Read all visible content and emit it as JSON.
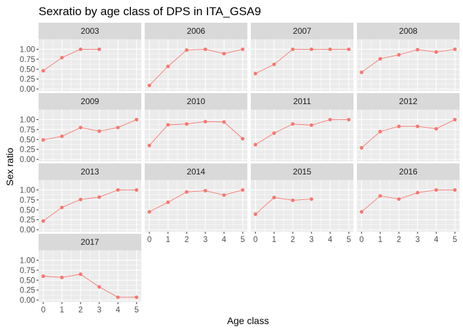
{
  "chart_data": {
    "type": "line",
    "title": "Sexratio by age class of DPS in ITA_GSA9",
    "xlabel": "Age class",
    "ylabel": "Sex ratio",
    "x_ticks": [
      0,
      1,
      2,
      3,
      4,
      5
    ],
    "y_ticks": [
      0,
      0.25,
      0.5,
      0.75,
      1
    ],
    "y_tick_labels": [
      "0.00",
      "0.25",
      "0.50",
      "0.75",
      "1.00"
    ],
    "xlim": [
      -0.25,
      5.25
    ],
    "ylim": [
      -0.05,
      1.25
    ],
    "grid": true,
    "facet_layout": "wrap",
    "facet_columns": 4,
    "series_color": "#F8766D",
    "panel_background": "#EBEBEB",
    "strip_background": "#D9D9D9",
    "grid_color": "#FFFFFF",
    "panels": [
      {
        "label": "2003",
        "x": [
          0,
          1,
          2,
          3
        ],
        "y": [
          0.46,
          0.79,
          1.0,
          1.0
        ]
      },
      {
        "label": "2006",
        "x": [
          0,
          1,
          2,
          3,
          4,
          5
        ],
        "y": [
          0.09,
          0.57,
          0.98,
          1.0,
          0.89,
          1.0
        ]
      },
      {
        "label": "2007",
        "x": [
          0,
          1,
          2,
          3,
          4,
          5
        ],
        "y": [
          0.39,
          0.62,
          1.0,
          1.0,
          1.0,
          1.0
        ]
      },
      {
        "label": "2008",
        "x": [
          0,
          1,
          2,
          3,
          4,
          5
        ],
        "y": [
          0.42,
          0.76,
          0.86,
          0.99,
          0.93,
          1.0
        ]
      },
      {
        "label": "2009",
        "x": [
          0,
          1,
          2,
          3,
          4,
          5
        ],
        "y": [
          0.49,
          0.58,
          0.8,
          0.71,
          0.8,
          1.0
        ]
      },
      {
        "label": "2010",
        "x": [
          0,
          1,
          2,
          3,
          4,
          5
        ],
        "y": [
          0.35,
          0.87,
          0.89,
          0.95,
          0.94,
          0.52
        ]
      },
      {
        "label": "2011",
        "x": [
          0,
          1,
          2,
          3,
          4,
          5
        ],
        "y": [
          0.37,
          0.66,
          0.89,
          0.86,
          1.0,
          1.0
        ]
      },
      {
        "label": "2012",
        "x": [
          0,
          1,
          2,
          3,
          4,
          5
        ],
        "y": [
          0.29,
          0.7,
          0.83,
          0.83,
          0.77,
          1.0
        ]
      },
      {
        "label": "2013",
        "x": [
          0,
          1,
          2,
          3,
          4,
          5
        ],
        "y": [
          0.22,
          0.56,
          0.76,
          0.82,
          1.0,
          1.0
        ]
      },
      {
        "label": "2014",
        "x": [
          0,
          1,
          2,
          3,
          4,
          5
        ],
        "y": [
          0.45,
          0.69,
          0.95,
          0.98,
          0.87,
          1.0
        ]
      },
      {
        "label": "2015",
        "x": [
          0,
          1,
          2,
          3
        ],
        "y": [
          0.39,
          0.81,
          0.74,
          0.77
        ]
      },
      {
        "label": "2016",
        "x": [
          0,
          1,
          2,
          3,
          4,
          5
        ],
        "y": [
          0.45,
          0.85,
          0.77,
          0.93,
          1.0,
          1.0
        ]
      },
      {
        "label": "2017",
        "x": [
          0,
          1,
          2,
          3,
          4,
          5
        ],
        "y": [
          0.6,
          0.57,
          0.65,
          0.33,
          0.07,
          0.07
        ]
      }
    ]
  }
}
